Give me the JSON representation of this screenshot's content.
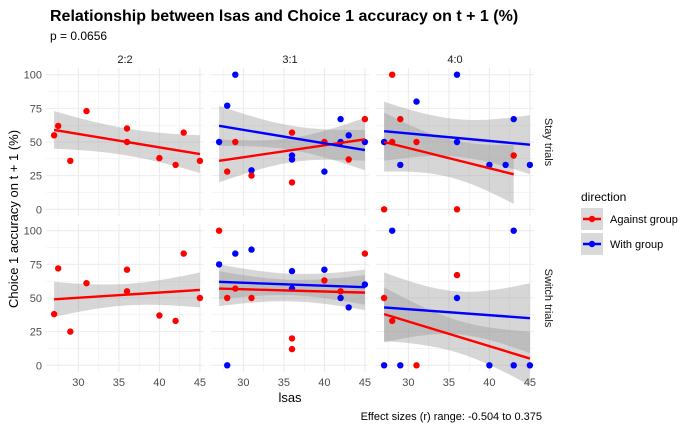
{
  "chart_data": {
    "type": "scatter",
    "title": "Relationship between lsas and Choice 1 accuracy on t + 1 (%)",
    "subtitle": "p = 0.0656",
    "xlabel": "lsas",
    "ylabel": "Choice 1 accuracy on t + 1 (%)",
    "caption": "Effect sizes (r) range: -0.504 to 0.375",
    "xlim": [
      26,
      45.5
    ],
    "ylim": [
      -5,
      105
    ],
    "x_ticks": [
      30,
      35,
      40,
      45
    ],
    "y_ticks": [
      0,
      25,
      50,
      75,
      100
    ],
    "grid": true,
    "legend": {
      "title": "direction",
      "position": "right",
      "entries": [
        {
          "label": "Against group",
          "color": "#ff0000"
        },
        {
          "label": "With group",
          "color": "#0000ff"
        }
      ]
    },
    "col_facets": [
      "2:2",
      "3:1",
      "4:0"
    ],
    "row_facets": [
      "Stay trials",
      "Switch trials"
    ],
    "panels": [
      {
        "row": 0,
        "col": 0,
        "points": [
          {
            "x": 27,
            "y": 55,
            "g": "against"
          },
          {
            "x": 27.5,
            "y": 62,
            "g": "against"
          },
          {
            "x": 29,
            "y": 36,
            "g": "against"
          },
          {
            "x": 31,
            "y": 73,
            "g": "against"
          },
          {
            "x": 36,
            "y": 60,
            "g": "against"
          },
          {
            "x": 36,
            "y": 50,
            "g": "against"
          },
          {
            "x": 40,
            "y": 38,
            "g": "against"
          },
          {
            "x": 42,
            "y": 33,
            "g": "against"
          },
          {
            "x": 43,
            "y": 57,
            "g": "against"
          },
          {
            "x": 45,
            "y": 36,
            "g": "against"
          }
        ],
        "fits": [
          {
            "g": "against",
            "x": [
              27,
              45
            ],
            "y": [
              59,
              41
            ],
            "band_mid": 10,
            "band_end": 14
          }
        ]
      },
      {
        "row": 0,
        "col": 1,
        "points": [
          {
            "x": 27,
            "y": 50,
            "g": "with"
          },
          {
            "x": 28,
            "y": 77,
            "g": "with"
          },
          {
            "x": 28,
            "y": 28,
            "g": "against"
          },
          {
            "x": 29,
            "y": 100,
            "g": "with"
          },
          {
            "x": 29,
            "y": 50,
            "g": "against"
          },
          {
            "x": 31,
            "y": 29,
            "g": "with"
          },
          {
            "x": 31,
            "y": 25,
            "g": "against"
          },
          {
            "x": 36,
            "y": 57,
            "g": "against"
          },
          {
            "x": 36,
            "y": 40,
            "g": "with"
          },
          {
            "x": 36,
            "y": 37,
            "g": "with"
          },
          {
            "x": 36,
            "y": 20,
            "g": "against"
          },
          {
            "x": 40,
            "y": 50,
            "g": "against"
          },
          {
            "x": 40,
            "y": 28,
            "g": "with"
          },
          {
            "x": 42,
            "y": 67,
            "g": "with"
          },
          {
            "x": 42,
            "y": 50,
            "g": "with"
          },
          {
            "x": 43,
            "y": 55,
            "g": "with"
          },
          {
            "x": 43,
            "y": 37,
            "g": "against"
          },
          {
            "x": 45,
            "y": 67,
            "g": "against"
          },
          {
            "x": 45,
            "y": 50,
            "g": "with"
          }
        ],
        "fits": [
          {
            "g": "with",
            "x": [
              27,
              45
            ],
            "y": [
              62,
              44
            ],
            "band_mid": 9,
            "band_end": 15
          },
          {
            "g": "against",
            "x": [
              27,
              45
            ],
            "y": [
              36,
              52
            ],
            "band_mid": 9,
            "band_end": 16
          }
        ]
      },
      {
        "row": 0,
        "col": 2,
        "points": [
          {
            "x": 27,
            "y": 0,
            "g": "against"
          },
          {
            "x": 27,
            "y": 50,
            "g": "with"
          },
          {
            "x": 28,
            "y": 100,
            "g": "against"
          },
          {
            "x": 28,
            "y": 50,
            "g": "against"
          },
          {
            "x": 29,
            "y": 67,
            "g": "against"
          },
          {
            "x": 29,
            "y": 33,
            "g": "with"
          },
          {
            "x": 31,
            "y": 80,
            "g": "with"
          },
          {
            "x": 31,
            "y": 50,
            "g": "against"
          },
          {
            "x": 36,
            "y": 100,
            "g": "with"
          },
          {
            "x": 36,
            "y": 50,
            "g": "with"
          },
          {
            "x": 36,
            "y": 0,
            "g": "against"
          },
          {
            "x": 40,
            "y": 33,
            "g": "with"
          },
          {
            "x": 42,
            "y": 33,
            "g": "with"
          },
          {
            "x": 43,
            "y": 67,
            "g": "with"
          },
          {
            "x": 43,
            "y": 40,
            "g": "against"
          },
          {
            "x": 45,
            "y": 33,
            "g": "with"
          }
        ],
        "fits": [
          {
            "g": "with",
            "x": [
              27,
              45
            ],
            "y": [
              58,
              48
            ],
            "band_mid": 14,
            "band_end": 22
          },
          {
            "g": "against",
            "x": [
              27,
              43
            ],
            "y": [
              50,
              26
            ],
            "band_mid": 14,
            "band_end": 22
          }
        ]
      },
      {
        "row": 1,
        "col": 0,
        "points": [
          {
            "x": 27,
            "y": 38,
            "g": "against"
          },
          {
            "x": 27.5,
            "y": 72,
            "g": "against"
          },
          {
            "x": 29,
            "y": 25,
            "g": "against"
          },
          {
            "x": 31,
            "y": 61,
            "g": "against"
          },
          {
            "x": 36,
            "y": 71,
            "g": "against"
          },
          {
            "x": 36,
            "y": 55,
            "g": "against"
          },
          {
            "x": 40,
            "y": 37,
            "g": "against"
          },
          {
            "x": 42,
            "y": 33,
            "g": "against"
          },
          {
            "x": 43,
            "y": 83,
            "g": "against"
          },
          {
            "x": 45,
            "y": 50,
            "g": "against"
          }
        ],
        "fits": [
          {
            "g": "against",
            "x": [
              27,
              45
            ],
            "y": [
              49,
              56
            ],
            "band_mid": 8,
            "band_end": 13
          }
        ]
      },
      {
        "row": 1,
        "col": 1,
        "points": [
          {
            "x": 27,
            "y": 100,
            "g": "against"
          },
          {
            "x": 27,
            "y": 75,
            "g": "with"
          },
          {
            "x": 28,
            "y": 50,
            "g": "against"
          },
          {
            "x": 28,
            "y": 0,
            "g": "with"
          },
          {
            "x": 29,
            "y": 83,
            "g": "with"
          },
          {
            "x": 29,
            "y": 57,
            "g": "against"
          },
          {
            "x": 31,
            "y": 86,
            "g": "with"
          },
          {
            "x": 31,
            "y": 50,
            "g": "against"
          },
          {
            "x": 36,
            "y": 70,
            "g": "with"
          },
          {
            "x": 36,
            "y": 57,
            "g": "with"
          },
          {
            "x": 36,
            "y": 20,
            "g": "against"
          },
          {
            "x": 36,
            "y": 12,
            "g": "against"
          },
          {
            "x": 40,
            "y": 71,
            "g": "with"
          },
          {
            "x": 40,
            "y": 63,
            "g": "against"
          },
          {
            "x": 42,
            "y": 50,
            "g": "with"
          },
          {
            "x": 42,
            "y": 55,
            "g": "against"
          },
          {
            "x": 43,
            "y": 43,
            "g": "with"
          },
          {
            "x": 45,
            "y": 83,
            "g": "against"
          },
          {
            "x": 45,
            "y": 60,
            "g": "with"
          }
        ],
        "fits": [
          {
            "g": "with",
            "x": [
              27,
              45
            ],
            "y": [
              62,
              58
            ],
            "band_mid": 8,
            "band_end": 13
          },
          {
            "g": "against",
            "x": [
              27,
              45
            ],
            "y": [
              57,
              54
            ],
            "band_mid": 8,
            "band_end": 13
          }
        ]
      },
      {
        "row": 1,
        "col": 2,
        "points": [
          {
            "x": 27,
            "y": 50,
            "g": "against"
          },
          {
            "x": 27,
            "y": 0,
            "g": "with"
          },
          {
            "x": 28,
            "y": 100,
            "g": "with"
          },
          {
            "x": 28,
            "y": 33,
            "g": "against"
          },
          {
            "x": 29,
            "y": 0,
            "g": "with"
          },
          {
            "x": 31,
            "y": 0,
            "g": "against"
          },
          {
            "x": 36,
            "y": 67,
            "g": "against"
          },
          {
            "x": 36,
            "y": 50,
            "g": "with"
          },
          {
            "x": 40,
            "y": 0,
            "g": "with"
          },
          {
            "x": 43,
            "y": 100,
            "g": "with"
          },
          {
            "x": 43,
            "y": 0,
            "g": "with"
          },
          {
            "x": 45,
            "y": 0,
            "g": "with"
          }
        ],
        "fits": [
          {
            "g": "with",
            "x": [
              27,
              45
            ],
            "y": [
              43,
              35
            ],
            "band_mid": 16,
            "band_end": 26
          },
          {
            "g": "against",
            "x": [
              27,
              45
            ],
            "y": [
              38,
              5
            ],
            "band_mid": 12,
            "band_end": 20
          }
        ]
      }
    ]
  }
}
